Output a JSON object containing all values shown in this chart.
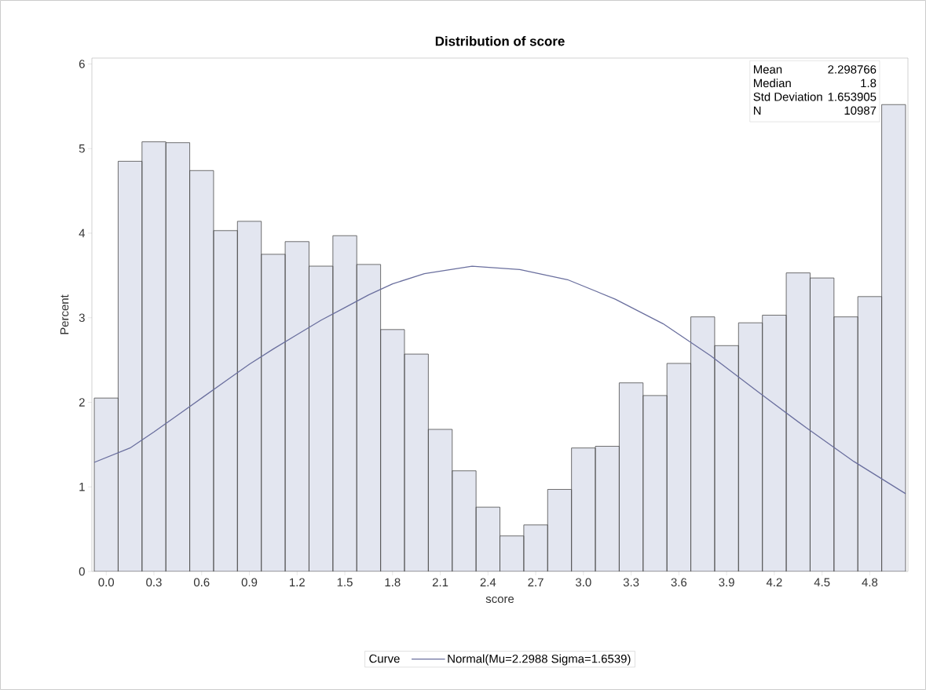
{
  "chart_data": {
    "type": "histogram",
    "title": "Distribution of score",
    "xlabel": "score",
    "ylabel": "Percent",
    "legend_title": "Curve",
    "legend": "bottom",
    "color": "#e3e6f0",
    "bins": [
      -0.075,
      0.075,
      0.225,
      0.375,
      0.525,
      0.675,
      0.825,
      0.975,
      1.125,
      1.275,
      1.425,
      1.575,
      1.725,
      1.875,
      2.025,
      2.175,
      2.325,
      2.475,
      2.625,
      2.775,
      2.925,
      3.075,
      3.225,
      3.375,
      3.525,
      3.675,
      3.825,
      3.975,
      4.125,
      4.275,
      4.425,
      4.575,
      4.725,
      4.875,
      5.025
    ],
    "values": [
      2.05,
      4.85,
      5.08,
      5.07,
      4.74,
      4.03,
      4.14,
      3.75,
      3.9,
      3.61,
      3.97,
      3.63,
      2.86,
      2.57,
      1.68,
      1.19,
      0.76,
      0.42,
      0.55,
      0.97,
      1.46,
      1.48,
      2.23,
      2.08,
      2.46,
      3.01,
      2.67,
      2.94,
      3.03,
      3.53,
      3.47,
      3.01,
      3.25,
      5.52
    ],
    "series": [
      {
        "type": "line",
        "name": "Normal(Mu=2.2988 Sigma=1.6539)",
        "color": "#6a6f9e",
        "x": [
          -0.075,
          0.15,
          0.3,
          0.45,
          0.6,
          0.75,
          0.9,
          1.05,
          1.2,
          1.35,
          1.5,
          1.65,
          1.8,
          2.0,
          2.3,
          2.6,
          2.9,
          3.2,
          3.5,
          3.8,
          4.1,
          4.4,
          4.7,
          5.025
        ],
        "values": [
          1.29,
          1.46,
          1.65,
          1.85,
          2.05,
          2.25,
          2.45,
          2.63,
          2.8,
          2.97,
          3.12,
          3.27,
          3.4,
          3.52,
          3.61,
          3.57,
          3.45,
          3.22,
          2.93,
          2.55,
          2.12,
          1.7,
          1.3,
          0.92
        ]
      }
    ],
    "xlim": [
      -0.09,
      5.04
    ],
    "ylim": [
      0,
      6.07
    ],
    "xticks": [
      {
        "value": 0,
        "label": "0.0"
      },
      0.3,
      0.6,
      0.9,
      1.2,
      1.5,
      1.8,
      2.1,
      2.4,
      2.7,
      {
        "value": 3,
        "label": "3.0"
      },
      3.3,
      3.6,
      3.9,
      4.2,
      4.5,
      4.8
    ],
    "yticks": [
      0,
      1,
      2,
      3,
      4,
      5,
      6
    ],
    "annotations": [
      "Mean",
      "2.298766",
      "Median",
      "1.8",
      "Std Deviation",
      "1.653905",
      "N",
      "10987"
    ]
  }
}
